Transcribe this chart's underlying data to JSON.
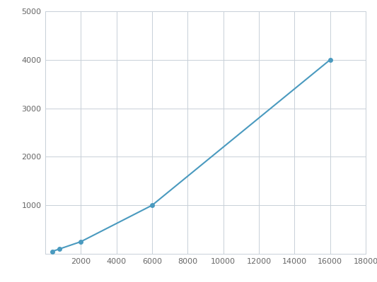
{
  "x": [
    400,
    800,
    2000,
    6000,
    16000
  ],
  "y": [
    50,
    100,
    250,
    1000,
    4000
  ],
  "line_color": "#4a9abf",
  "marker_color": "#4a9abf",
  "marker_size": 4,
  "line_width": 1.5,
  "xlim": [
    0,
    18000
  ],
  "ylim": [
    0,
    5000
  ],
  "xticks": [
    0,
    2000,
    4000,
    6000,
    8000,
    10000,
    12000,
    14000,
    16000,
    18000
  ],
  "yticks": [
    0,
    1000,
    2000,
    3000,
    4000,
    5000
  ],
  "grid_color": "#c8d0d8",
  "background_color": "#ffffff",
  "tick_fontsize": 8,
  "tick_color": "#666666"
}
